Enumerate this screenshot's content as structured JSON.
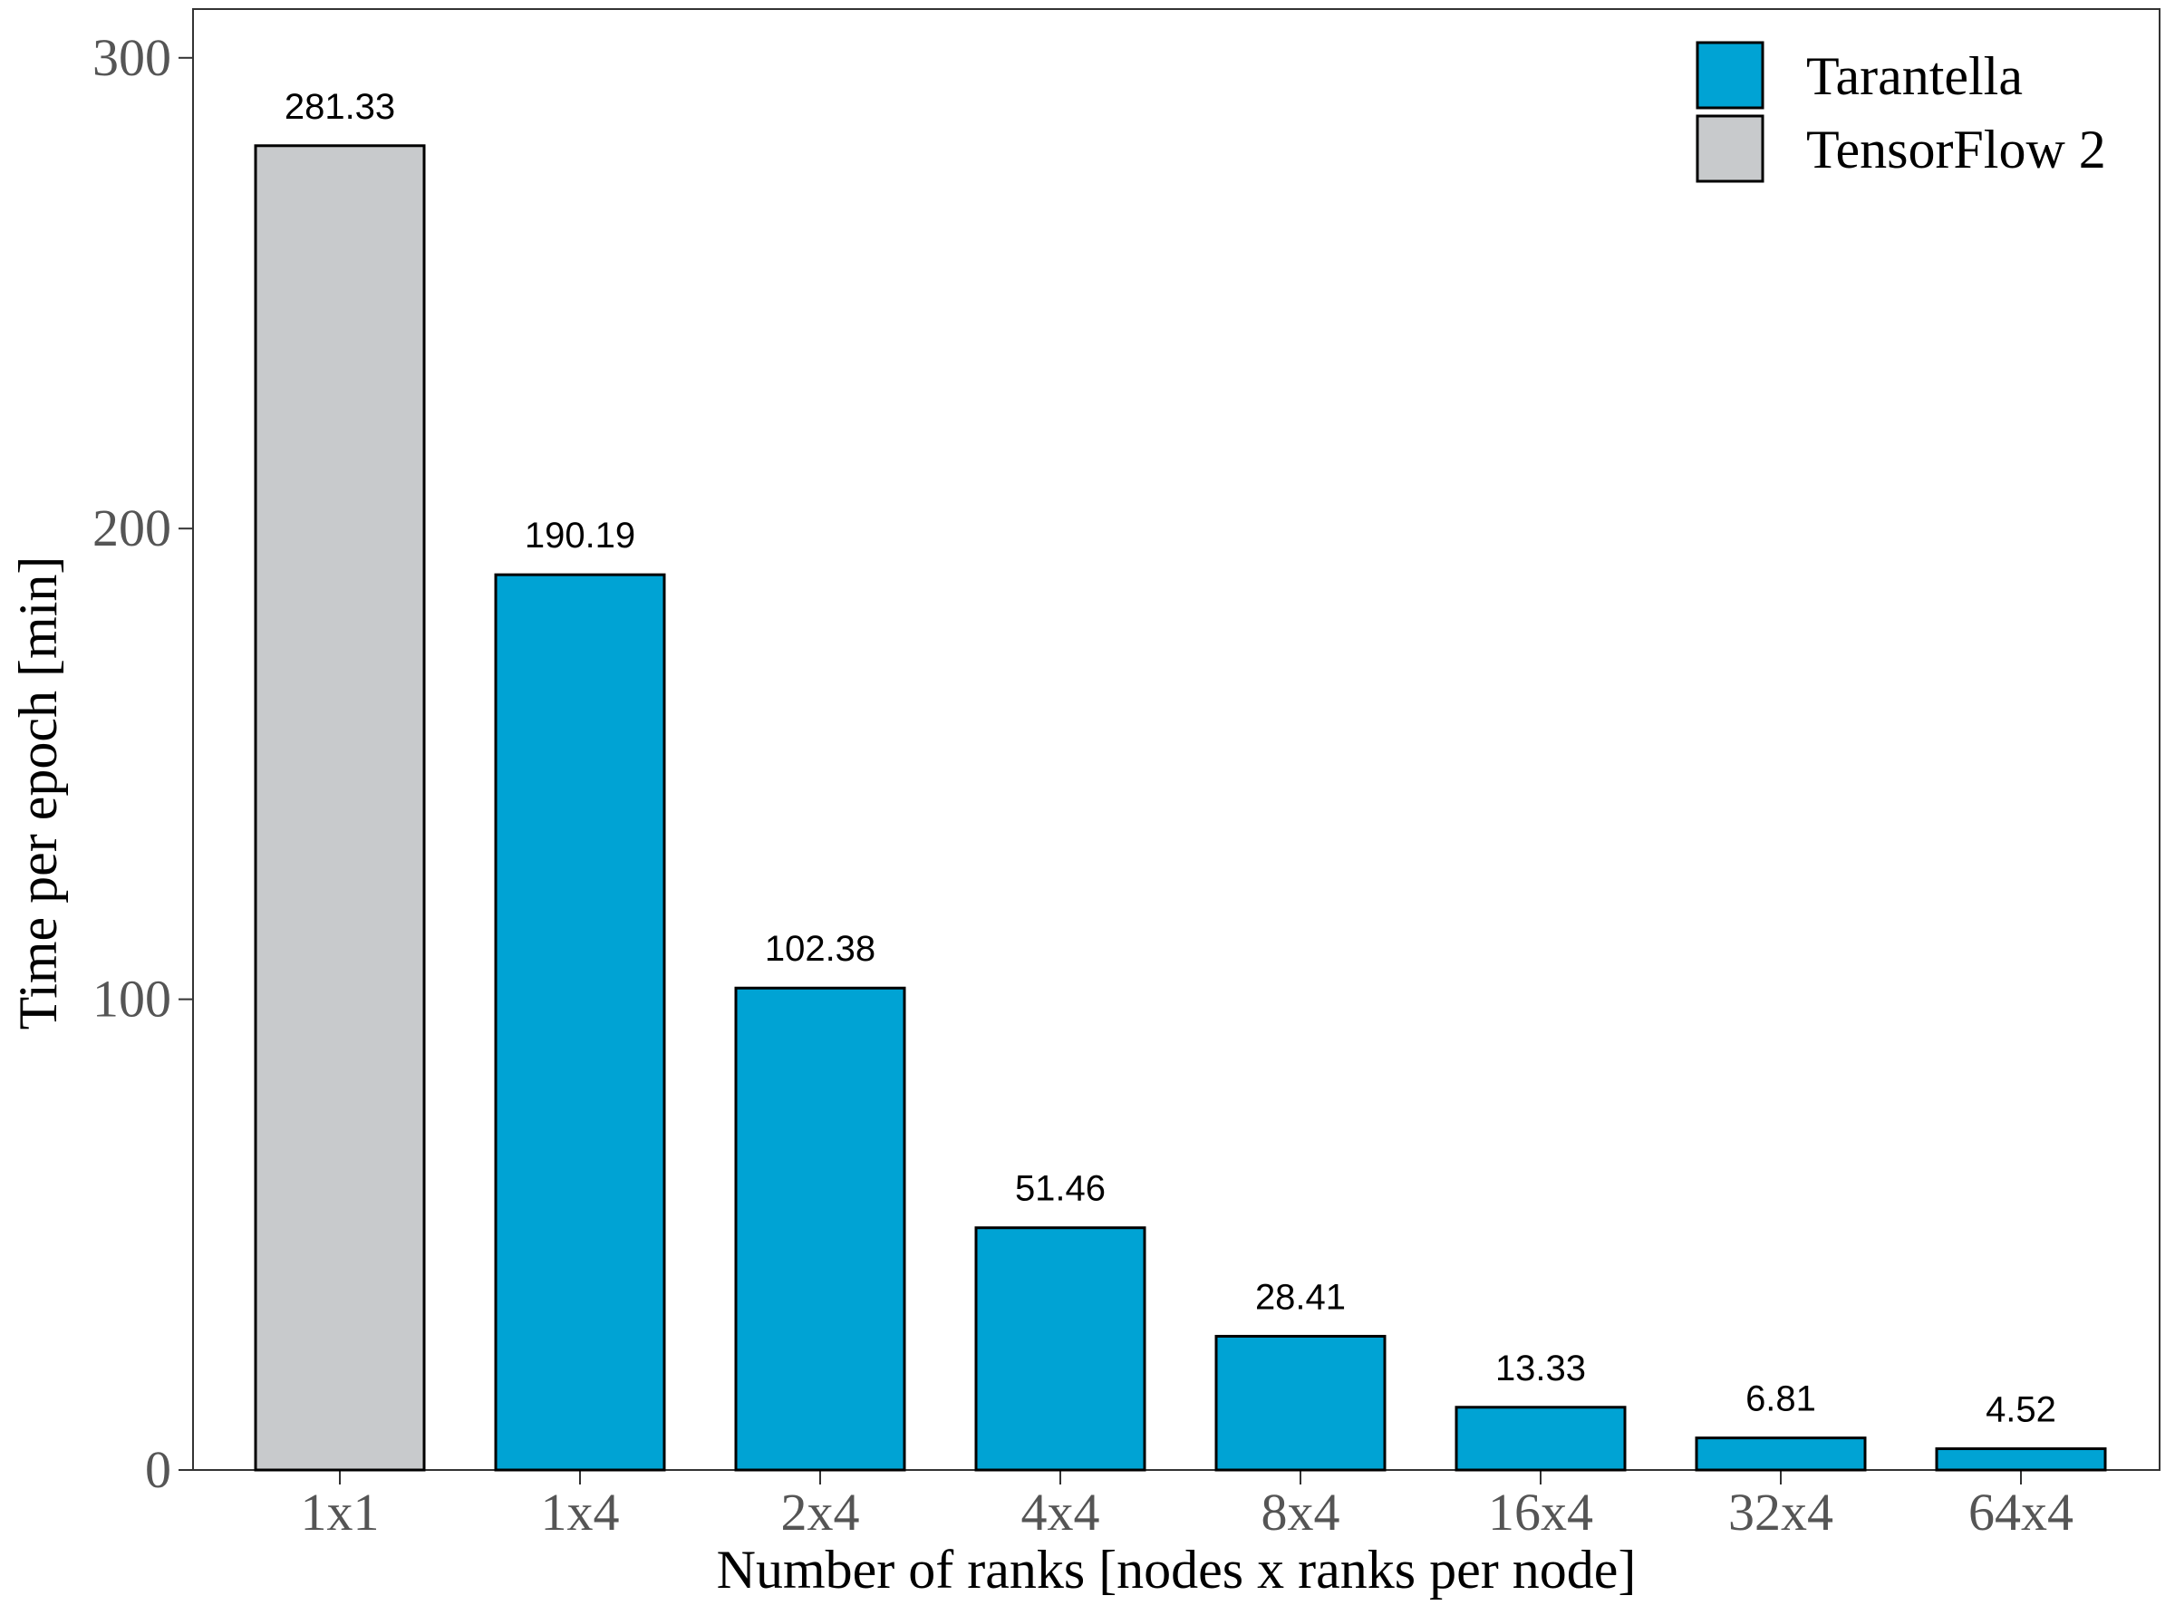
{
  "chart_data": {
    "type": "bar",
    "categories": [
      "1x1",
      "1x4",
      "2x4",
      "4x4",
      "8x4",
      "16x4",
      "32x4",
      "64x4"
    ],
    "values": [
      281.33,
      190.19,
      102.38,
      51.46,
      28.41,
      13.33,
      6.81,
      4.52
    ],
    "value_labels": [
      "281.33",
      "190.19",
      "102.38",
      "51.46",
      "28.41",
      "13.33",
      "6.81",
      "4.52"
    ],
    "bar_series": [
      "TensorFlow 2",
      "Tarantella",
      "Tarantella",
      "Tarantella",
      "Tarantella",
      "Tarantella",
      "Tarantella",
      "Tarantella"
    ],
    "series": [
      {
        "name": "Tarantella",
        "color": "#00A3D4"
      },
      {
        "name": "TensorFlow 2",
        "color": "#C8CACC"
      }
    ],
    "xlabel": "Number of ranks [nodes x ranks per node]",
    "ylabel": "Time per epoch [min]",
    "ylim": [
      0,
      310
    ],
    "yticks": [
      0,
      100,
      200,
      300
    ],
    "ytick_labels": [
      "0",
      "100",
      "200",
      "300"
    ],
    "grid": false,
    "legend_position": "top-right"
  }
}
